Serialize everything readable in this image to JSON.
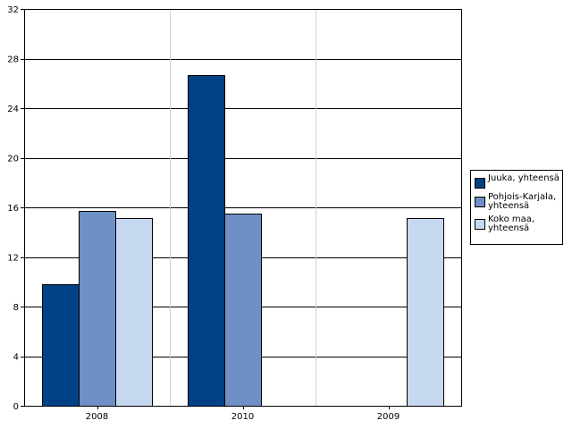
{
  "chart_data": {
    "type": "bar",
    "categories": [
      "2008",
      "2010",
      "2009"
    ],
    "series": [
      {
        "name": "Juuka, yhteensä",
        "color": "#004285",
        "values": [
          9.8,
          26.7,
          null
        ]
      },
      {
        "name": "Pohjois-Karjala, yhteensä",
        "color": "#6f8fc7",
        "values": [
          15.7,
          15.5,
          null
        ]
      },
      {
        "name": "Koko maa, yhteensä",
        "color": "#c6d7f0",
        "values": [
          15.1,
          null,
          15.1
        ]
      }
    ],
    "ylim": [
      0,
      32
    ],
    "yticks": [
      0,
      4,
      8,
      12,
      16,
      20,
      24,
      28,
      32
    ],
    "horizontal_grid": true,
    "vertical_grid": true,
    "legend_position": "right"
  },
  "legend": {
    "items": [
      {
        "label": "Juuka, yhteensä",
        "color": "#004285"
      },
      {
        "label": "Pohjois-Karjala,\nyhteensä",
        "color": "#6f8fc7"
      },
      {
        "label": "Koko maa,\nyhteensä",
        "color": "#c6d7f0"
      }
    ]
  }
}
